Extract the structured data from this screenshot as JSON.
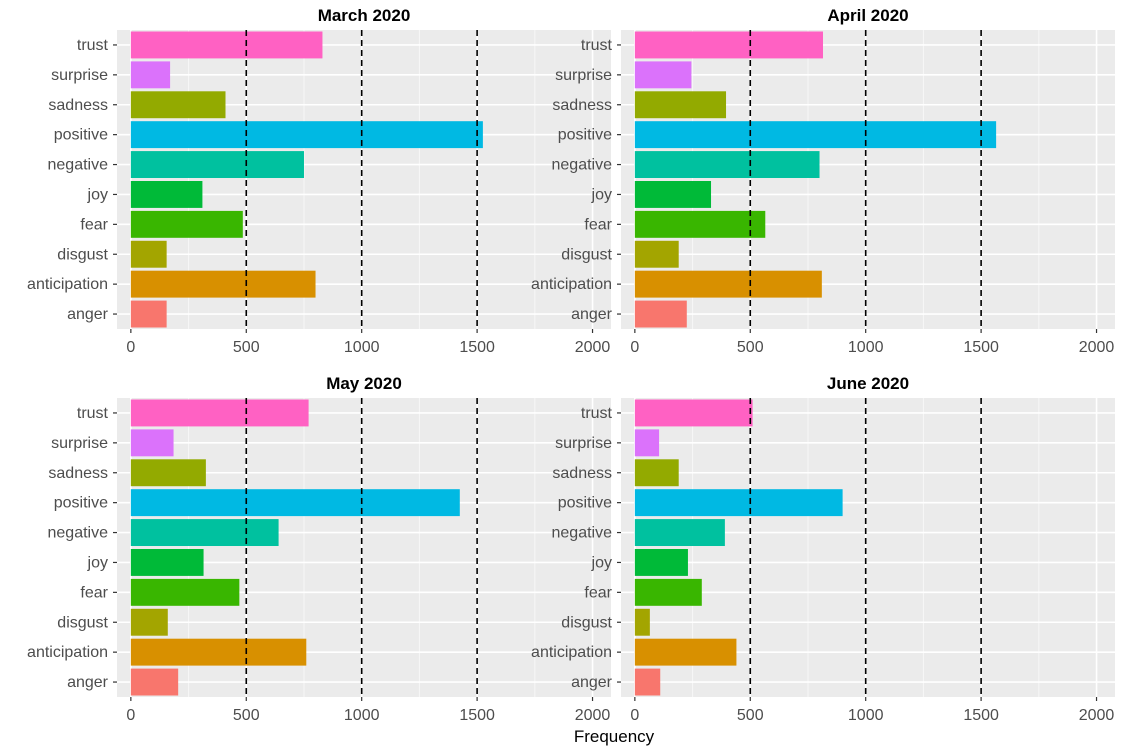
{
  "chart_data": {
    "type": "bar",
    "orientation": "horizontal",
    "xlabel": "Frequency",
    "xlim": [
      -60,
      2080
    ],
    "xticks": [
      0,
      500,
      1000,
      1500,
      2000
    ],
    "reference_lines": [
      500,
      1000,
      1500
    ],
    "grid": true,
    "categories": [
      "trust",
      "surprise",
      "sadness",
      "positive",
      "negative",
      "joy",
      "fear",
      "disgust",
      "anticipation",
      "anger"
    ],
    "colors": {
      "trust": "#FF61C3",
      "surprise": "#DB72FB",
      "sadness": "#93AA00",
      "positive": "#00B9E3",
      "negative": "#00C19F",
      "joy": "#00BA38",
      "fear": "#39B600",
      "disgust": "#A3A500",
      "anticipation": "#D89000",
      "anger": "#F8766D"
    },
    "panels": [
      {
        "title": "March 2020",
        "values": {
          "trust": 830,
          "surprise": 170,
          "sadness": 410,
          "positive": 1525,
          "negative": 750,
          "joy": 310,
          "fear": 485,
          "disgust": 155,
          "anticipation": 800,
          "anger": 155
        }
      },
      {
        "title": "April 2020",
        "values": {
          "trust": 815,
          "surprise": 245,
          "sadness": 395,
          "positive": 1565,
          "negative": 800,
          "joy": 330,
          "fear": 565,
          "disgust": 190,
          "anticipation": 810,
          "anger": 225
        }
      },
      {
        "title": "May 2020",
        "values": {
          "trust": 770,
          "surprise": 185,
          "sadness": 325,
          "positive": 1425,
          "negative": 640,
          "joy": 315,
          "fear": 470,
          "disgust": 160,
          "anticipation": 760,
          "anger": 205
        }
      },
      {
        "title": "June 2020",
        "values": {
          "trust": 510,
          "surprise": 105,
          "sadness": 190,
          "positive": 900,
          "negative": 390,
          "joy": 230,
          "fear": 290,
          "disgust": 65,
          "anticipation": 440,
          "anger": 110
        }
      }
    ]
  }
}
